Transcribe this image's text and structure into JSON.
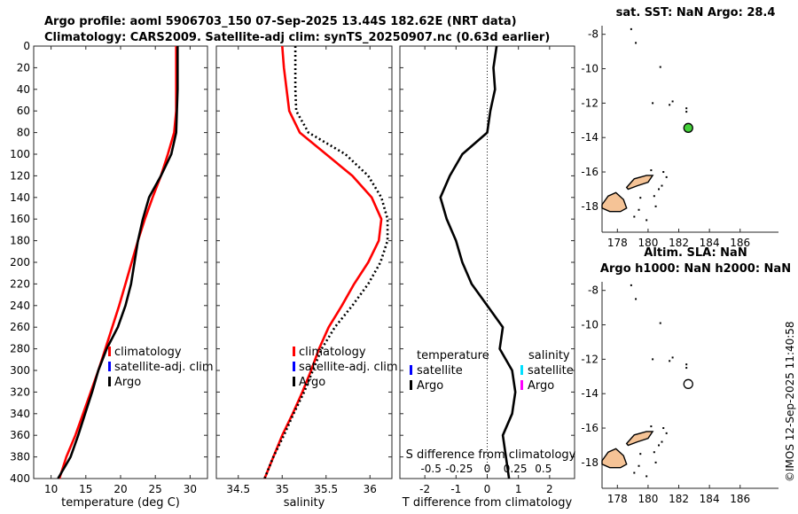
{
  "title_line1": "Argo profile: aoml 5906703_150 07-Sep-2025 13.44S 182.62E (NRT data)",
  "title_line2": "Climatology: CARS2009. Satellite-adj clim: synTS_20250907.nc (0.63d earlier)",
  "timestamp": "©IMOS 12-Sep-2025 11:40:58",
  "colors": {
    "argo": "#000000",
    "climatology": "#ff0000",
    "satellite": "#0000ff",
    "sal_satellite": "#00e0ff",
    "sal_argo": "#ff00ff",
    "land": "#f5c396",
    "sst_marker": "#44d13a"
  },
  "chart_data": [
    {
      "id": "temperature",
      "type": "line",
      "xlabel": "temperature (deg C)",
      "xlim": [
        7.5,
        32.5
      ],
      "ylim": [
        0,
        400
      ],
      "y_reversed": true,
      "xticks": [
        10,
        15,
        20,
        25,
        30
      ],
      "yticks": [
        0,
        20,
        40,
        60,
        80,
        100,
        120,
        140,
        160,
        180,
        200,
        220,
        240,
        260,
        280,
        300,
        320,
        340,
        360,
        380,
        400
      ],
      "legend": [
        "climatology",
        "satellite-adj. clim",
        "Argo"
      ],
      "series": [
        {
          "name": "climatology",
          "color": "#ff0000",
          "style": "solid",
          "x": [
            28.0,
            28.0,
            28.0,
            28.0,
            27.7,
            26.8,
            25.8,
            24.6,
            23.5,
            22.5,
            21.6,
            20.7,
            19.8,
            18.8,
            17.8,
            16.8,
            15.7,
            14.6,
            13.5,
            12.2,
            11.2
          ],
          "y": [
            0,
            20,
            40,
            60,
            80,
            100,
            120,
            140,
            160,
            180,
            200,
            220,
            240,
            260,
            280,
            300,
            320,
            340,
            360,
            380,
            400
          ]
        },
        {
          "name": "Argo",
          "color": "#000000",
          "style": "solid",
          "x": [
            28.2,
            28.2,
            28.2,
            28.1,
            28.0,
            27.3,
            25.8,
            24.1,
            23.2,
            22.5,
            22.0,
            21.5,
            20.7,
            19.6,
            18.0,
            16.8,
            15.9,
            14.9,
            13.9,
            12.8,
            11.0
          ],
          "y": [
            0,
            20,
            40,
            60,
            80,
            100,
            120,
            140,
            160,
            180,
            200,
            220,
            240,
            260,
            280,
            300,
            320,
            340,
            360,
            380,
            400
          ]
        }
      ]
    },
    {
      "id": "salinity",
      "type": "line",
      "xlabel": "salinity",
      "xlim": [
        34.25,
        36.25
      ],
      "ylim": [
        0,
        400
      ],
      "y_reversed": true,
      "xticks": [
        34.5,
        35,
        35.5,
        36
      ],
      "legend": [
        "climatology",
        "satellite-adj. clim",
        "Argo"
      ],
      "series": [
        {
          "name": "climatology",
          "color": "#ff0000",
          "style": "solid",
          "x": [
            35.0,
            35.02,
            35.05,
            35.08,
            35.2,
            35.5,
            35.8,
            36.02,
            36.13,
            36.1,
            35.98,
            35.82,
            35.68,
            35.53,
            35.42,
            35.33,
            35.23,
            35.12,
            35.0,
            34.9,
            34.8
          ],
          "y": [
            0,
            20,
            40,
            60,
            80,
            100,
            120,
            140,
            160,
            180,
            200,
            220,
            240,
            260,
            280,
            300,
            320,
            340,
            360,
            380,
            400
          ]
        },
        {
          "name": "Argo",
          "color": "#000000",
          "style": "dotted",
          "x": [
            35.15,
            35.15,
            35.15,
            35.16,
            35.3,
            35.72,
            35.98,
            36.13,
            36.2,
            36.2,
            36.12,
            35.98,
            35.8,
            35.6,
            35.45,
            35.35,
            35.25,
            35.13,
            35.02,
            34.9,
            34.8
          ],
          "y": [
            0,
            20,
            40,
            60,
            80,
            100,
            120,
            140,
            160,
            180,
            200,
            220,
            240,
            260,
            280,
            300,
            320,
            340,
            360,
            380,
            400
          ]
        }
      ]
    },
    {
      "id": "difference",
      "type": "line",
      "xlabel": "T difference from climatology",
      "top_xlabel": "S difference from climatology",
      "xlim": [
        -2.8,
        2.8
      ],
      "ylim": [
        0,
        400
      ],
      "y_reversed": true,
      "xticks": [
        -2,
        -1,
        0,
        1,
        2
      ],
      "s_xticks": [
        "-0.5",
        "-0.25",
        "0",
        "0.25",
        "0.5"
      ],
      "legend_t_title": "temperature",
      "legend_s_title": "salinity",
      "legend_t": [
        "satellite",
        "Argo"
      ],
      "legend_s": [
        "satellite",
        "Argo"
      ],
      "series": [
        {
          "name": "T difference (Argo)",
          "color": "#000000",
          "style": "solid",
          "x": [
            0.3,
            0.2,
            0.25,
            0.1,
            0.0,
            -0.8,
            -1.2,
            -1.5,
            -1.3,
            -1.0,
            -0.8,
            -0.5,
            0.0,
            0.5,
            0.4,
            0.8,
            0.9,
            0.8,
            0.5,
            0.6,
            0.7
          ],
          "y": [
            0,
            20,
            40,
            60,
            80,
            100,
            120,
            140,
            160,
            180,
            200,
            220,
            240,
            260,
            280,
            300,
            320,
            340,
            360,
            380,
            400
          ]
        }
      ]
    },
    {
      "id": "sst_map",
      "type": "scatter",
      "title": "sat. SST: NaN Argo: 28.4",
      "xlim": [
        177,
        188.5
      ],
      "ylim": [
        -19.5,
        -7.5
      ],
      "xticks": [
        178,
        180,
        182,
        184,
        186
      ],
      "yticks": [
        -8,
        -10,
        -12,
        -14,
        -16,
        -18
      ],
      "points": [
        {
          "lon": 182.62,
          "lat": -13.44,
          "filled": true
        }
      ]
    },
    {
      "id": "sla_map",
      "type": "scatter",
      "title_line1": "Altim. SLA: NaN",
      "title_line2": "Argo h1000: NaN h2000: NaN",
      "xlim": [
        177,
        188.5
      ],
      "ylim": [
        -19.5,
        -7.5
      ],
      "xticks": [
        178,
        180,
        182,
        184,
        186
      ],
      "yticks": [
        -8,
        -10,
        -12,
        -14,
        -16,
        -18
      ],
      "points": [
        {
          "lon": 182.62,
          "lat": -13.44,
          "filled": false
        }
      ]
    }
  ]
}
